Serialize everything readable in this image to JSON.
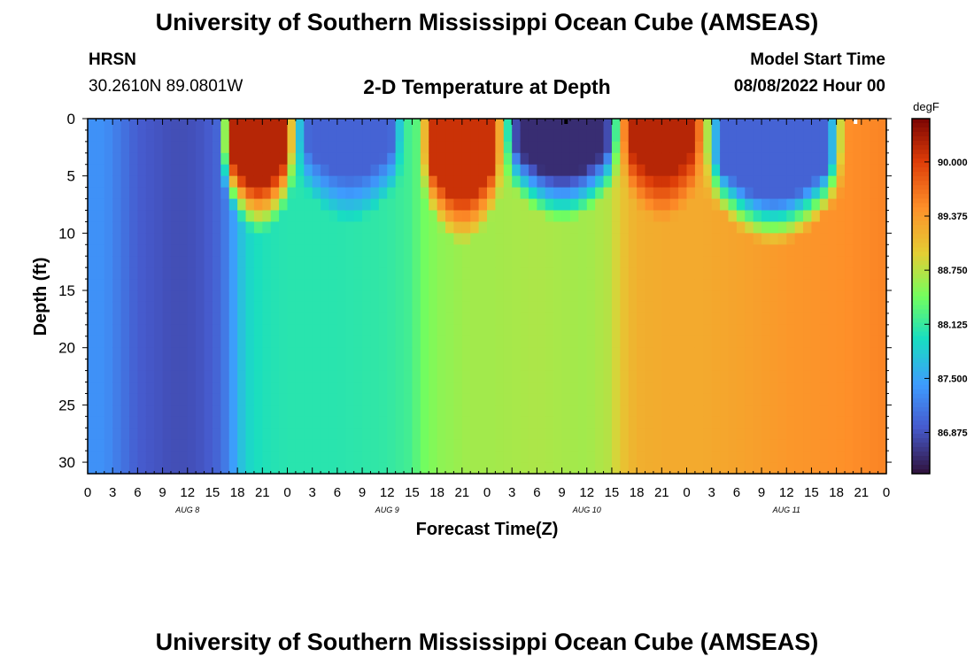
{
  "header": {
    "title": "University of Southern Mississippi Ocean Cube (AMSEAS)",
    "station": "HRSN",
    "coords": "30.2610N  89.0801W",
    "plot_title": "2-D Temperature at Depth",
    "model_label": "Model Start Time",
    "model_time": "08/08/2022 Hour 00",
    "bottom_title": "University of Southern Mississippi Ocean Cube (AMSEAS)"
  },
  "chart_data": {
    "type": "heatmap",
    "title": "2-D Temperature at Depth",
    "xlabel": "Forecast Time(Z)",
    "ylabel": "Depth (ft)",
    "units": "degF",
    "xlim": [
      0,
      96
    ],
    "ylim": [
      0,
      31
    ],
    "x_tick_labels": [
      "0",
      "3",
      "6",
      "9",
      "12",
      "15",
      "18",
      "21",
      "0",
      "3",
      "6",
      "9",
      "12",
      "15",
      "18",
      "21",
      "0",
      "3",
      "6",
      "9",
      "12",
      "15",
      "18",
      "21",
      "0",
      "3",
      "6",
      "9",
      "12",
      "15",
      "18",
      "21",
      "0"
    ],
    "day_labels": [
      "AUG 8",
      "AUG 9",
      "AUG 10",
      "AUG 11"
    ],
    "y_ticks": [
      0,
      5,
      10,
      15,
      20,
      25,
      30
    ],
    "colorbar_ticks": [
      "90.000",
      "89.375",
      "88.750",
      "88.125",
      "87.500",
      "86.875"
    ],
    "colorbar_values": [
      90.0,
      89.375,
      88.75,
      88.125,
      87.5,
      86.875
    ],
    "colorbar_range": [
      86.4,
      90.5
    ],
    "deep_temperature_profile": {
      "hours": [
        0,
        2,
        4,
        6,
        8,
        10,
        12,
        14,
        16,
        17,
        18,
        19,
        20,
        21,
        24,
        30,
        36,
        39,
        40,
        42,
        44,
        46,
        48,
        54,
        60,
        63,
        64,
        66,
        70,
        74,
        78,
        84,
        90,
        96
      ],
      "degF": [
        87.35,
        87.35,
        87.15,
        86.95,
        86.9,
        86.85,
        86.85,
        86.9,
        87.05,
        87.3,
        87.6,
        87.85,
        87.95,
        88.0,
        88.05,
        88.05,
        88.1,
        88.2,
        88.4,
        88.55,
        88.6,
        88.65,
        88.65,
        88.7,
        88.65,
        88.75,
        89.0,
        89.2,
        89.25,
        89.25,
        89.3,
        89.4,
        89.45,
        89.55
      ]
    },
    "surface_warm_layers": [
      {
        "start": 16,
        "end": 25,
        "depth_ft": 9,
        "peak_degF": 90.2
      },
      {
        "start": 40,
        "end": 50,
        "depth_ft": 10,
        "peak_degF": 90.1
      },
      {
        "start": 64,
        "end": 74,
        "depth_ft": 8,
        "peak_degF": 90.2
      }
    ],
    "surface_cool_layers": [
      {
        "start": 25,
        "end": 38,
        "depth_ft": 8,
        "min_degF": 87.0
      },
      {
        "start": 50,
        "end": 64,
        "depth_ft": 8,
        "min_degF": 86.6
      },
      {
        "start": 74,
        "end": 91,
        "depth_ft": 10,
        "min_degF": 87.0
      }
    ]
  }
}
